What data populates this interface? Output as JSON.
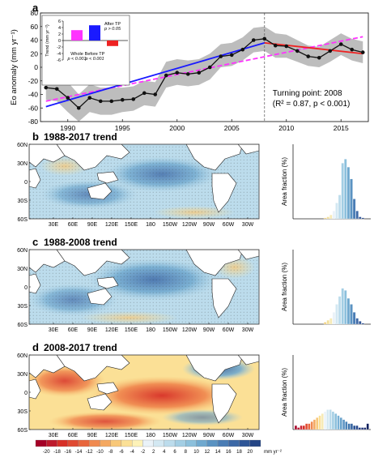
{
  "chart_data": [
    {
      "panel": "a",
      "type": "line",
      "ylabel": "Eo anomaly (mm yr⁻¹)",
      "ylim": [
        -80,
        80
      ],
      "yticks": [
        -80,
        -60,
        -40,
        -20,
        0,
        20,
        40,
        60,
        80
      ],
      "xlim": [
        1987.5,
        2017.5
      ],
      "xticks": [
        1990,
        1995,
        2000,
        2005,
        2010,
        2015
      ],
      "x": [
        1988,
        1989,
        1990,
        1991,
        1992,
        1993,
        1994,
        1995,
        1996,
        1997,
        1998,
        1999,
        2000,
        2001,
        2002,
        2003,
        2004,
        2005,
        2006,
        2007,
        2008,
        2009,
        2010,
        2011,
        2012,
        2013,
        2014,
        2015,
        2016,
        2017
      ],
      "series": [
        {
          "values": [
            -30,
            -32,
            -45,
            -60,
            -45,
            -50,
            -50,
            -48,
            -47,
            -38,
            -40,
            -12,
            -8,
            -10,
            -8,
            0,
            16,
            18,
            26,
            40,
            42,
            32,
            31,
            24,
            16,
            14,
            24,
            34,
            26,
            22
          ],
          "band_upper": [
            -12,
            -14,
            -22,
            -40,
            -25,
            -30,
            -30,
            -30,
            -28,
            -20,
            -22,
            8,
            12,
            10,
            12,
            20,
            34,
            36,
            44,
            58,
            60,
            50,
            48,
            40,
            32,
            30,
            40,
            50,
            42,
            38
          ],
          "band_lower": [
            -48,
            -50,
            -66,
            -80,
            -66,
            -70,
            -70,
            -66,
            -64,
            -56,
            -58,
            -30,
            -26,
            -28,
            -26,
            -18,
            0,
            2,
            10,
            22,
            24,
            14,
            14,
            8,
            2,
            0,
            8,
            18,
            10,
            6
          ]
        }
      ],
      "fits": [
        {
          "label": "Whole",
          "x": [
            1988,
            2017
          ],
          "y": [
            -50,
            45
          ],
          "style": "dashed"
        },
        {
          "label": "Before TP",
          "x": [
            1988,
            2008
          ],
          "y": [
            -58,
            36
          ],
          "style": "solid"
        },
        {
          "label": "After TP",
          "x": [
            2008,
            2017
          ],
          "y": [
            36,
            20
          ],
          "style": "solid"
        }
      ],
      "turning_point_x": 2008,
      "annotation": [
        "Turning point: 2008",
        "(R² = 0.87, p < 0.001)"
      ],
      "inset": {
        "ylabel": "Trend (mm yr⁻²)",
        "ylim": [
          -6,
          6
        ],
        "yticks": [
          -6,
          -4,
          -2,
          0,
          2,
          4,
          6
        ],
        "bars": [
          {
            "name": "Whole",
            "value": 3.2,
            "p_label": "p < 0.001",
            "color": "#ff33ff"
          },
          {
            "name": "Before TP",
            "value": 4.7,
            "p_label": "p < 0.001",
            "color": "#1a1aff"
          },
          {
            "name": "After TP",
            "value": -1.7,
            "p_label": "p > 0.05",
            "color": "#ee2222"
          }
        ]
      },
      "colors": {
        "band": "#bdbdbd",
        "line": "#111111",
        "whole": "#ff33ff",
        "before": "#1a1aff",
        "after": "#ee2222"
      }
    },
    {
      "panel": "b",
      "type": "bar",
      "map_title": "1988-2017 trend",
      "ylabel": "Area fraction (%)",
      "values": [
        0.5,
        1,
        2,
        4,
        8,
        12,
        28,
        30,
        26,
        20,
        10,
        4,
        1,
        0.5
      ],
      "bin_colors": [
        "#f0d080",
        "#f3e09a",
        "#f6eab6",
        "#eaf2f8",
        "#d3e8f2",
        "#bcdcec",
        "#a3cee4",
        "#8cc0dc",
        "#70a9cf",
        "#5a93c2",
        "#4a7db5",
        "#3c68a6",
        "#305596",
        "#244585"
      ],
      "ylim": [
        0,
        35
      ]
    },
    {
      "panel": "c",
      "type": "bar",
      "map_title": "1988-2008 trend",
      "ylabel": "Area fraction (%)",
      "values": [
        1,
        2,
        3,
        6,
        10,
        14,
        18,
        17,
        13,
        10,
        6,
        3,
        1.5,
        0.5
      ],
      "bin_colors": [
        "#f0d080",
        "#f3e09a",
        "#f6eab6",
        "#eaf2f8",
        "#d3e8f2",
        "#bcdcec",
        "#a3cee4",
        "#8cc0dc",
        "#70a9cf",
        "#5a93c2",
        "#4a7db5",
        "#3c68a6",
        "#305596",
        "#244585"
      ],
      "ylim": [
        0,
        35
      ]
    },
    {
      "panel": "d",
      "type": "bar",
      "map_title": "2008-2017 trend",
      "ylabel": "Area fraction (%)",
      "values": [
        2,
        1,
        2,
        2,
        3,
        3,
        4,
        5,
        6,
        7,
        8,
        9,
        10,
        10,
        9,
        8,
        7,
        6,
        5,
        4,
        3,
        3,
        2,
        2,
        1,
        1,
        1,
        3
      ],
      "bin_colors": [
        "#a50026",
        "#b8112c",
        "#cc2233",
        "#d73027",
        "#e04a32",
        "#e8663d",
        "#f08a50",
        "#f4a860",
        "#f8c879",
        "#fbe096",
        "#f6eab6",
        "#eaf2f8",
        "#d3e8f2",
        "#bcdcec",
        "#a3cee4",
        "#8cc0dc",
        "#7ab2d6",
        "#6aa3cc",
        "#5a93c2",
        "#4a83b8",
        "#3e73ac",
        "#33629f",
        "#2a5393",
        "#22448a",
        "#1c3880",
        "#182e76",
        "#14266c",
        "#10205e"
      ],
      "ylim": [
        0,
        35
      ]
    }
  ],
  "map_axes": {
    "lat_labels": [
      "60N",
      "30N",
      "0",
      "30S",
      "60S"
    ],
    "lon_labels": [
      "30E",
      "60E",
      "90E",
      "120E",
      "150E",
      "180",
      "150W",
      "120W",
      "90W",
      "60W",
      "30W"
    ]
  },
  "colorbar": {
    "labels": [
      "-20",
      "-18",
      "-16",
      "-14",
      "-12",
      "-10",
      "-8",
      "-6",
      "-4",
      "-2",
      "2",
      "4",
      "6",
      "8",
      "10",
      "12",
      "14",
      "16",
      "18",
      "20"
    ],
    "unit": "mm yr⁻²",
    "colors": [
      "#a50026",
      "#be1a2c",
      "#d73027",
      "#e04a32",
      "#e8663d",
      "#f08a50",
      "#f4a860",
      "#f8c879",
      "#fbe096",
      "#fdf2b8",
      "#eaf2f8",
      "#d3e8f2",
      "#bcdcec",
      "#a3cee4",
      "#8cc0dc",
      "#70a9cf",
      "#5a93c2",
      "#4a7db5",
      "#3c68a6",
      "#2e5597",
      "#244585"
    ]
  },
  "panel_letters": [
    "a",
    "b",
    "c",
    "d"
  ]
}
